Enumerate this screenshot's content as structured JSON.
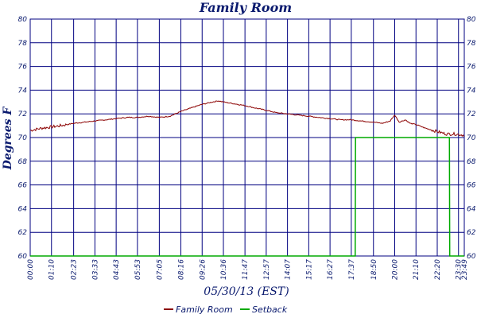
{
  "chart_data": {
    "type": "line",
    "title": "Family Room",
    "xlabel": "05/30/13 (EST)",
    "ylabel": "Degrees F",
    "ylim": [
      60,
      80
    ],
    "yticks": [
      60,
      62,
      64,
      66,
      68,
      70,
      72,
      74,
      76,
      78,
      80
    ],
    "xlim": [
      0,
      1429
    ],
    "xticks": [
      {
        "label": "00:00",
        "t": 0
      },
      {
        "label": "01:10",
        "t": 70
      },
      {
        "label": "02:23",
        "t": 143
      },
      {
        "label": "03:33",
        "t": 213
      },
      {
        "label": "04:43",
        "t": 283
      },
      {
        "label": "05:53",
        "t": 353
      },
      {
        "label": "07:05",
        "t": 425
      },
      {
        "label": "08:16",
        "t": 496
      },
      {
        "label": "09:26",
        "t": 566
      },
      {
        "label": "10:36",
        "t": 636
      },
      {
        "label": "11:47",
        "t": 707
      },
      {
        "label": "12:57",
        "t": 777
      },
      {
        "label": "14:07",
        "t": 847
      },
      {
        "label": "15:17",
        "t": 917
      },
      {
        "label": "16:27",
        "t": 987
      },
      {
        "label": "17:37",
        "t": 1057
      },
      {
        "label": "18:50",
        "t": 1130
      },
      {
        "label": "20:00",
        "t": 1200
      },
      {
        "label": "21:10",
        "t": 1270
      },
      {
        "label": "22:20",
        "t": 1340
      },
      {
        "label": "23:30",
        "t": 1410
      },
      {
        "label": "23:49",
        "t": 1429
      }
    ],
    "grid": true,
    "legend": "bottom-center",
    "series": [
      {
        "name": "Family Room",
        "color": "#8b0000",
        "t": [
          0,
          40,
          70,
          100,
          143,
          180,
          213,
          250,
          283,
          320,
          353,
          390,
          425,
          460,
          496,
          530,
          566,
          600,
          620,
          636,
          660,
          707,
          740,
          777,
          810,
          847,
          880,
          917,
          950,
          987,
          1020,
          1057,
          1090,
          1130,
          1160,
          1185,
          1200,
          1215,
          1235,
          1250,
          1270,
          1300,
          1340,
          1370,
          1400,
          1429
        ],
        "values": [
          70.6,
          70.8,
          70.9,
          71.0,
          71.2,
          71.3,
          71.4,
          71.5,
          71.6,
          71.7,
          71.7,
          71.8,
          71.7,
          71.8,
          72.2,
          72.5,
          72.8,
          73.0,
          73.1,
          73.0,
          72.9,
          72.7,
          72.5,
          72.3,
          72.1,
          72.0,
          71.9,
          71.8,
          71.7,
          71.6,
          71.5,
          71.5,
          71.4,
          71.3,
          71.2,
          71.4,
          71.9,
          71.3,
          71.5,
          71.2,
          71.1,
          70.8,
          70.5,
          70.3,
          70.3,
          70.2
        ]
      },
      {
        "name": "Setback",
        "color": "#00aa00",
        "t": [
          0,
          1070,
          1071,
          1380,
          1381,
          1429
        ],
        "values": [
          60,
          60,
          70,
          70,
          60,
          60
        ]
      }
    ]
  }
}
